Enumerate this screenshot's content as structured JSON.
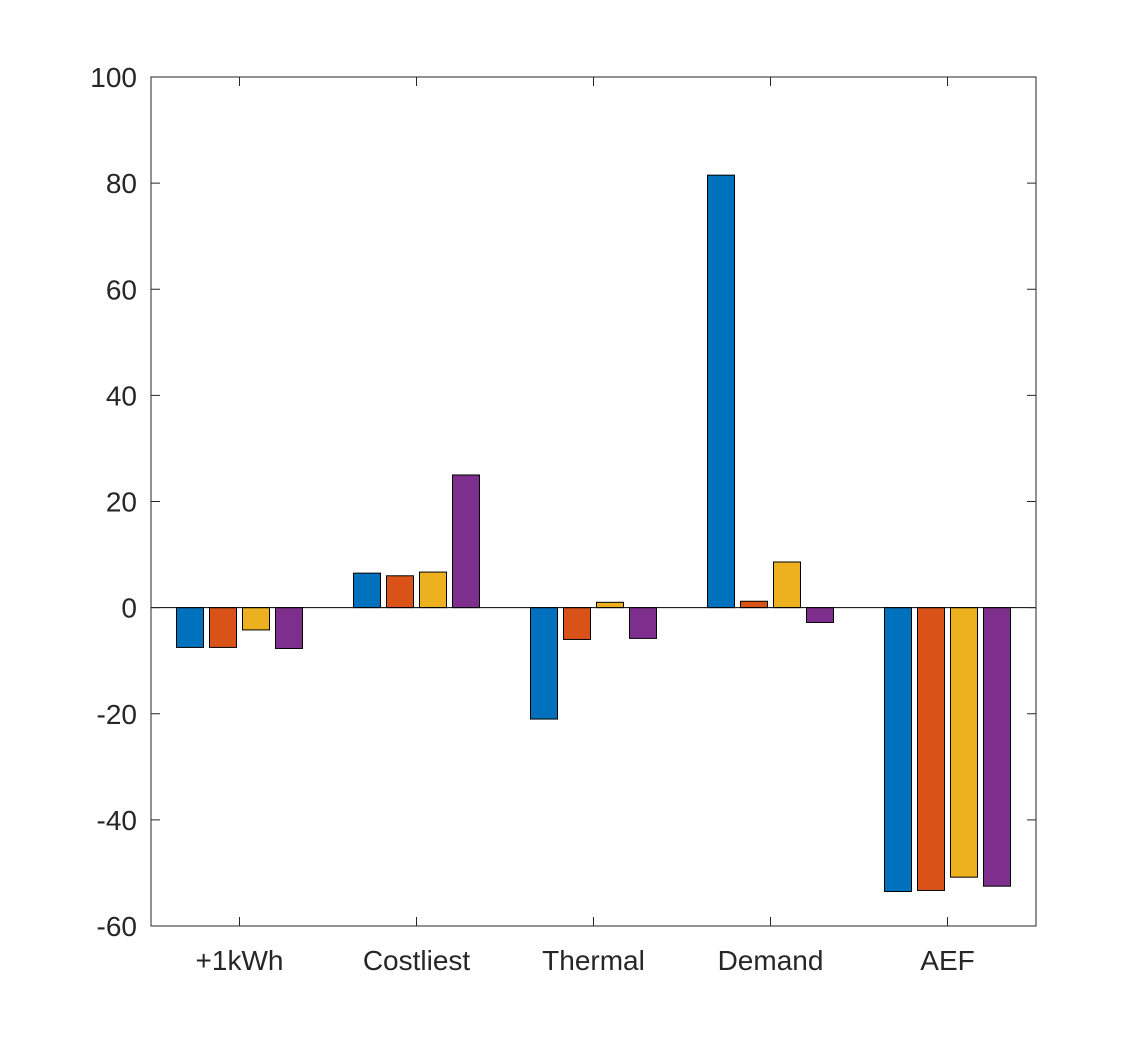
{
  "chart_data": {
    "type": "bar",
    "title": "",
    "xlabel": "",
    "ylabel": "",
    "ylim": [
      -60,
      100
    ],
    "yticks": [
      -60,
      -40,
      -20,
      0,
      20,
      40,
      60,
      80,
      100
    ],
    "grid": false,
    "legend": "none",
    "categories": [
      "+1kWh",
      "Costliest",
      "Thermal",
      "Demand",
      "AEF"
    ],
    "series": [
      {
        "color": "#0072BD",
        "values": [
          -7.5,
          6.5,
          -21,
          81.5,
          -53.5
        ]
      },
      {
        "color": "#D95319",
        "values": [
          -7.5,
          6,
          -6,
          1.2,
          -53.3
        ]
      },
      {
        "color": "#EDB120",
        "values": [
          -4.2,
          6.7,
          1,
          8.6,
          -50.8
        ]
      },
      {
        "color": "#7E2F8E",
        "values": [
          -7.7,
          25,
          -5.8,
          -2.8,
          -52.5
        ]
      }
    ]
  }
}
